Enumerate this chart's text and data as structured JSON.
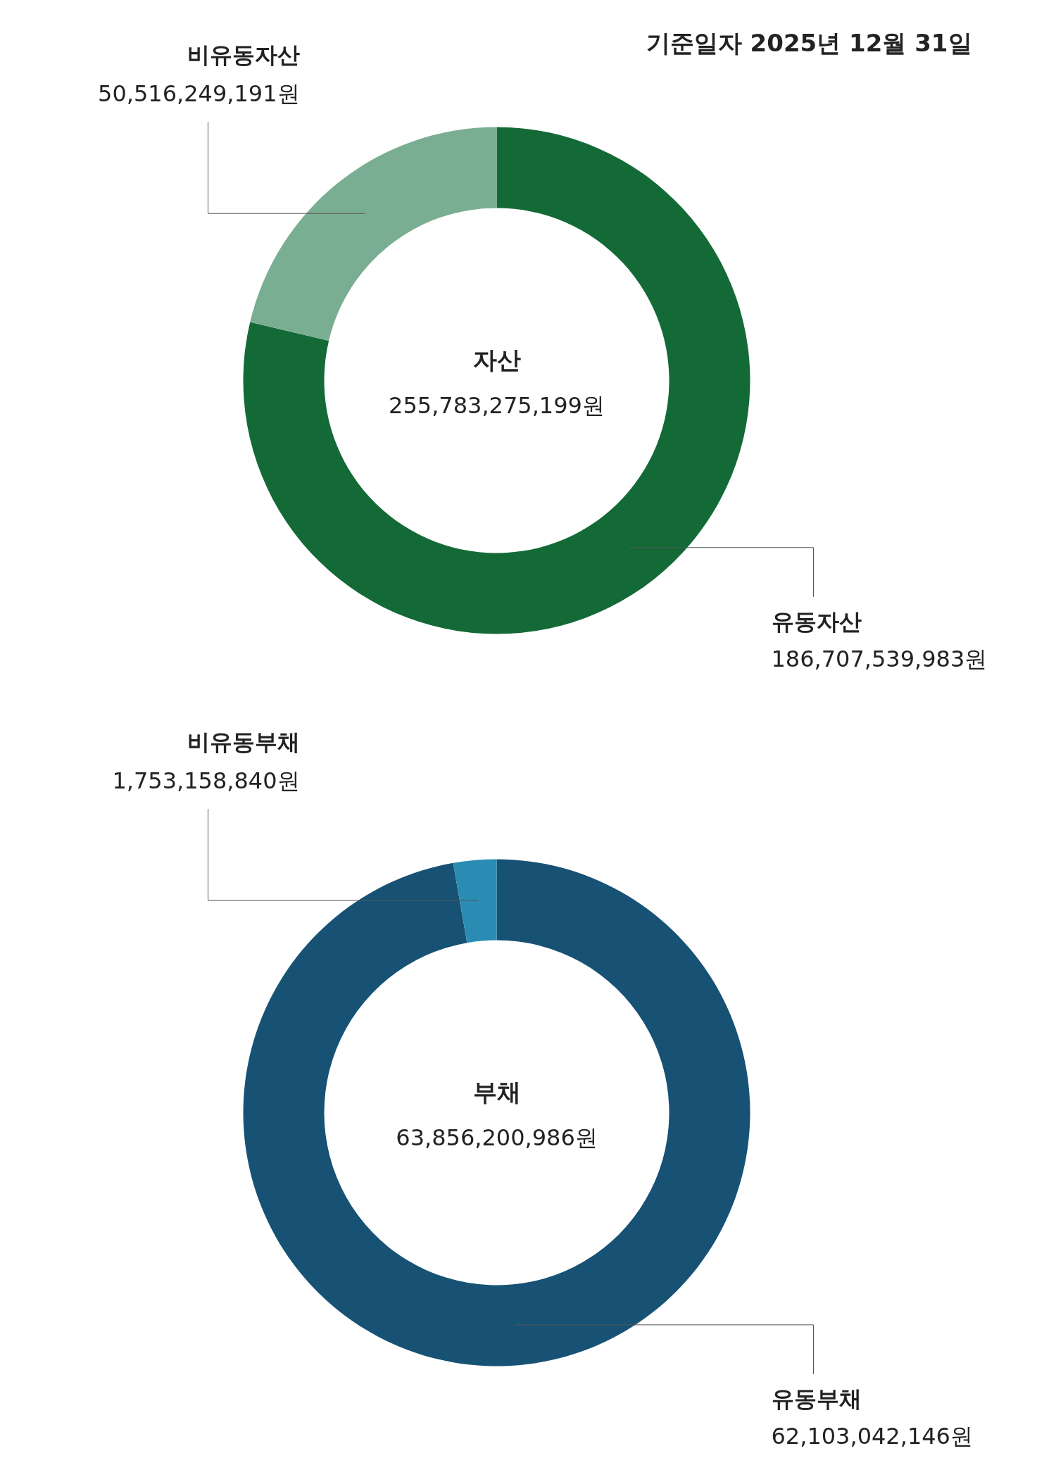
{
  "chart_data": [
    {
      "type": "donut",
      "title": "자산",
      "subtitle": "255,783,275,199원",
      "annotations": [
        "기준일자 2025년 12월 31일"
      ],
      "categories": [
        "유동자산",
        "비유동자산"
      ],
      "values": [
        186707539983,
        50516249191
      ],
      "colors": [
        "#146a37",
        "#7aae93"
      ],
      "value_labels": [
        "186,707,539,983원",
        "50,516,249,191원"
      ]
    },
    {
      "type": "donut",
      "title": "부채",
      "subtitle": "63,856,200,986원",
      "categories": [
        "유동부채",
        "비유동부채"
      ],
      "values": [
        62103042146,
        1753158840
      ],
      "colors": [
        "#175275",
        "#2b8cb3"
      ],
      "value_labels": [
        "62,103,042,146원",
        "1,753,158,840원"
      ]
    }
  ]
}
